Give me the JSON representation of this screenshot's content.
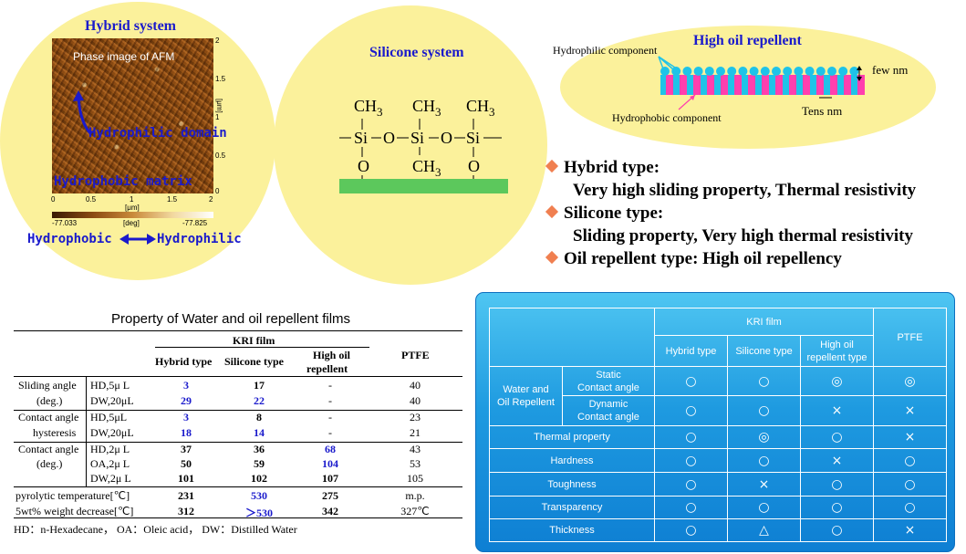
{
  "hybrid": {
    "title": "Hybrid system",
    "afm_label": "Phase image of AFM",
    "hydrophilic_domain": "Hydrophilic domain",
    "hydrophobic_matrix": "Hydrophobic matrix",
    "x_ticks": [
      "0",
      "0.5",
      "1",
      "1.5",
      "2"
    ],
    "x_unit": "[μm]",
    "y_ticks": [
      "2",
      "1.5",
      "1",
      "0.5",
      "0"
    ],
    "y_unit": "[μm]",
    "scale_min": "-77.033",
    "scale_unit": "[deg]",
    "scale_max": "-77.825",
    "bottom_left": "Hydrophobic",
    "bottom_right": "Hydrophilic"
  },
  "silicone": {
    "title": "Silicone system",
    "ch3": "CH",
    "sub3": "3",
    "si": "Si",
    "o": "O"
  },
  "oil": {
    "title": "High oil repellent",
    "hydrophilic_component": "Hydrophilic component",
    "hydrophobic_component": "Hydrophobic component",
    "few_nm": "few nm",
    "tens_nm": "Tens nm"
  },
  "bullets": [
    {
      "head": "Hybrid type:",
      "desc": "Very high sliding property, Thermal resistivity"
    },
    {
      "head": "Silicone type:",
      "desc": "Sliding property, Very high thermal resistivity"
    },
    {
      "head": "Oil repellent type: High oil repellency",
      "desc": ""
    }
  ],
  "left_table": {
    "title": "Property of Water and oil repellent films",
    "kri": "KRI film",
    "col_hybrid": "Hybrid type",
    "col_silicone": "Silicone type",
    "col_oil_1": "High oil",
    "col_oil_2": "repellent",
    "col_ptfe": "PTFE",
    "rows": [
      {
        "g1": "Sliding angle",
        "cond": "HD,5μ L",
        "h": "3",
        "s": "17",
        "o": "-",
        "p": "40"
      },
      {
        "g1": "(deg.)",
        "cond": "DW,20μL",
        "h": "29",
        "s": "22",
        "o": "-",
        "p": "40"
      },
      {
        "g1": "Contact angle",
        "cond": "HD,5μL",
        "h": "3",
        "s": "8",
        "o": "-",
        "p": "23"
      },
      {
        "g1": "hysteresis",
        "cond": "DW,20μL",
        "h": "18",
        "s": "14",
        "o": "-",
        "p": "21"
      },
      {
        "g1": "Contact angle",
        "cond": "HD,2μ L",
        "h": "37",
        "s": "36",
        "o": "68",
        "p": "43"
      },
      {
        "g1": "(deg.)",
        "cond": "OA,2μ L",
        "h": "50",
        "s": "59",
        "o": "104",
        "p": "53"
      },
      {
        "g1": "",
        "cond": "DW,2μ L",
        "h": "101",
        "s": "102",
        "o": "107",
        "p": "105"
      },
      {
        "g1": "pyrolytic temperature[℃]",
        "cond": "",
        "h": "231",
        "s": "530",
        "o": "275",
        "p": "m.p."
      },
      {
        "g1": "5wt% weight decrease[℃]",
        "cond": "",
        "h": "312",
        "s": "＞530",
        "o": "342",
        "p": "327℃"
      }
    ],
    "footnote": "HD：n-Hexadecane， OA：Oleic acid， DW：Distilled Water"
  },
  "right_table": {
    "kri": "KRI film",
    "ptfe": "PTFE",
    "col_hybrid": "Hybrid type",
    "col_silicone": "Silicone type",
    "col_oil_1": "High oil",
    "col_oil_2": "repellent type",
    "group_1": "Water and",
    "group_2": "Oil Repellent",
    "static_1": "Static",
    "static_2": "Contact angle",
    "dynamic_1": "Dynamic",
    "dynamic_2": "Contact angle",
    "rows": [
      {
        "label": "",
        "v": [
          "○",
          "○",
          "◎",
          "◎"
        ]
      },
      {
        "label": "",
        "v": [
          "○",
          "○",
          "×",
          "×"
        ]
      },
      {
        "label": "Thermal property",
        "v": [
          "○",
          "◎",
          "○",
          "×"
        ]
      },
      {
        "label": "Hardness",
        "v": [
          "○",
          "○",
          "×",
          "○"
        ]
      },
      {
        "label": "Toughness",
        "v": [
          "○",
          "×",
          "○",
          "○"
        ]
      },
      {
        "label": "Transparency",
        "v": [
          "○",
          "○",
          "○",
          "○"
        ]
      },
      {
        "label": "Thickness",
        "v": [
          "○",
          "△",
          "○",
          "×"
        ]
      }
    ]
  },
  "colors": {
    "ellipse": "#fbf19b",
    "title_blue": "#1a1acc",
    "bullet": "#f07f50",
    "panel": "#1e9ae0",
    "cyan_dot": "#1fc3e8",
    "magenta": "#ff3fae",
    "substrate": "#5cc85c"
  }
}
